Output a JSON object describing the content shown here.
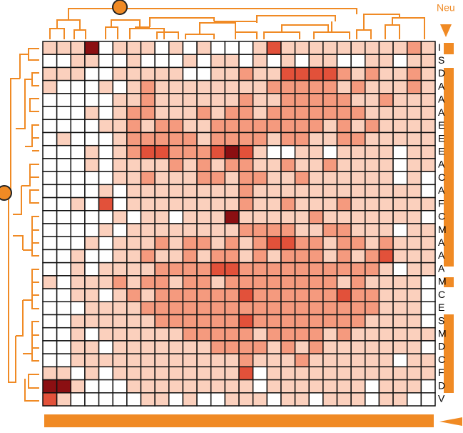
{
  "chart_data": {
    "type": "heatmap",
    "annotation": "Neu",
    "row_labels": [
      "I",
      "S",
      "D",
      "A",
      "A",
      "A",
      "E",
      "E",
      "E",
      "A",
      "C",
      "A",
      "F",
      "C",
      "M",
      "A",
      "A",
      "A",
      "M",
      "C",
      "E",
      "S",
      "M",
      "D",
      "C",
      "F",
      "D",
      "V"
    ],
    "zlim": [
      0,
      4
    ],
    "colors": [
      "#ffffff",
      "#fbd0bd",
      "#f59a7e",
      "#e2513a",
      "#8b0f12"
    ],
    "values": [
      [
        1,
        1,
        1,
        4,
        0,
        1,
        1,
        1,
        0,
        1,
        0,
        1,
        0,
        0,
        0,
        1,
        3,
        1,
        1,
        1,
        1,
        1,
        1,
        1,
        1,
        1,
        2,
        1
      ],
      [
        0,
        0,
        1,
        1,
        0,
        0,
        1,
        0,
        0,
        0,
        1,
        0,
        1,
        1,
        0,
        1,
        0,
        1,
        0,
        1,
        1,
        0,
        0,
        1,
        1,
        0,
        1,
        1
      ],
      [
        1,
        1,
        1,
        0,
        0,
        1,
        1,
        1,
        1,
        1,
        0,
        0,
        1,
        1,
        2,
        1,
        1,
        3,
        3,
        3,
        3,
        2,
        1,
        2,
        1,
        1,
        2,
        1
      ],
      [
        1,
        0,
        0,
        0,
        1,
        0,
        1,
        2,
        1,
        1,
        1,
        1,
        1,
        1,
        1,
        1,
        2,
        2,
        2,
        2,
        2,
        1,
        2,
        1,
        1,
        1,
        2,
        1
      ],
      [
        0,
        0,
        0,
        0,
        0,
        1,
        1,
        2,
        1,
        1,
        1,
        1,
        1,
        1,
        2,
        1,
        1,
        2,
        2,
        2,
        2,
        2,
        1,
        1,
        2,
        1,
        1,
        1
      ],
      [
        0,
        0,
        0,
        1,
        0,
        1,
        2,
        2,
        1,
        1,
        1,
        2,
        1,
        2,
        2,
        1,
        2,
        2,
        2,
        2,
        2,
        2,
        2,
        1,
        1,
        1,
        1,
        1
      ],
      [
        0,
        0,
        0,
        0,
        1,
        1,
        2,
        1,
        2,
        2,
        1,
        1,
        2,
        2,
        2,
        2,
        2,
        2,
        2,
        2,
        1,
        2,
        1,
        2,
        1,
        1,
        1,
        1
      ],
      [
        0,
        1,
        0,
        0,
        0,
        1,
        2,
        2,
        2,
        2,
        2,
        1,
        2,
        2,
        2,
        2,
        1,
        2,
        2,
        1,
        1,
        2,
        2,
        1,
        1,
        1,
        1,
        1
      ],
      [
        0,
        0,
        0,
        1,
        0,
        1,
        2,
        3,
        3,
        2,
        2,
        2,
        3,
        4,
        3,
        1,
        0,
        0,
        1,
        1,
        0,
        1,
        1,
        1,
        1,
        0,
        1,
        1
      ],
      [
        0,
        0,
        0,
        1,
        0,
        1,
        1,
        1,
        1,
        2,
        1,
        2,
        1,
        2,
        2,
        1,
        1,
        2,
        1,
        1,
        2,
        1,
        1,
        1,
        1,
        0,
        1,
        1
      ],
      [
        0,
        0,
        0,
        0,
        0,
        1,
        1,
        2,
        1,
        1,
        1,
        2,
        2,
        1,
        2,
        2,
        1,
        1,
        2,
        1,
        1,
        1,
        1,
        1,
        1,
        0,
        1,
        0
      ],
      [
        0,
        0,
        0,
        0,
        1,
        0,
        1,
        1,
        1,
        1,
        1,
        1,
        1,
        1,
        2,
        1,
        1,
        1,
        1,
        1,
        1,
        1,
        1,
        1,
        1,
        1,
        1,
        0
      ],
      [
        0,
        0,
        1,
        0,
        3,
        0,
        1,
        1,
        1,
        1,
        1,
        1,
        1,
        1,
        2,
        1,
        1,
        2,
        1,
        1,
        1,
        2,
        1,
        1,
        1,
        1,
        1,
        1
      ],
      [
        0,
        0,
        0,
        0,
        0,
        1,
        0,
        1,
        1,
        0,
        1,
        1,
        1,
        4,
        1,
        1,
        1,
        1,
        1,
        2,
        1,
        1,
        1,
        1,
        1,
        1,
        1,
        0
      ],
      [
        0,
        0,
        0,
        0,
        1,
        0,
        1,
        1,
        1,
        1,
        1,
        1,
        1,
        1,
        2,
        2,
        2,
        2,
        1,
        1,
        2,
        2,
        1,
        1,
        1,
        0,
        1,
        1
      ],
      [
        0,
        0,
        0,
        1,
        0,
        1,
        1,
        1,
        2,
        1,
        2,
        2,
        1,
        2,
        1,
        2,
        3,
        3,
        2,
        2,
        1,
        2,
        2,
        1,
        2,
        1,
        1,
        1
      ],
      [
        0,
        0,
        1,
        0,
        0,
        1,
        1,
        2,
        1,
        1,
        2,
        1,
        2,
        2,
        1,
        2,
        1,
        2,
        2,
        2,
        1,
        2,
        1,
        2,
        3,
        1,
        1,
        1
      ],
      [
        0,
        0,
        1,
        0,
        1,
        1,
        1,
        1,
        2,
        2,
        2,
        2,
        3,
        3,
        2,
        2,
        2,
        2,
        2,
        2,
        2,
        2,
        2,
        2,
        1,
        0,
        1,
        1
      ],
      [
        1,
        0,
        1,
        1,
        1,
        2,
        1,
        2,
        2,
        1,
        2,
        2,
        1,
        2,
        2,
        2,
        2,
        2,
        2,
        2,
        2,
        1,
        2,
        1,
        1,
        1,
        1,
        0
      ],
      [
        0,
        0,
        1,
        1,
        0,
        1,
        2,
        1,
        2,
        2,
        2,
        2,
        2,
        2,
        3,
        2,
        2,
        2,
        2,
        2,
        2,
        3,
        2,
        2,
        1,
        1,
        1,
        0
      ],
      [
        0,
        0,
        0,
        1,
        1,
        1,
        1,
        2,
        2,
        2,
        2,
        2,
        2,
        2,
        2,
        2,
        2,
        2,
        2,
        2,
        2,
        2,
        2,
        2,
        1,
        1,
        1,
        0
      ],
      [
        0,
        0,
        1,
        1,
        1,
        1,
        1,
        1,
        2,
        2,
        2,
        2,
        2,
        2,
        3,
        2,
        2,
        2,
        2,
        2,
        2,
        2,
        2,
        1,
        1,
        1,
        1,
        0
      ],
      [
        0,
        0,
        1,
        0,
        1,
        1,
        1,
        1,
        1,
        1,
        2,
        2,
        2,
        2,
        2,
        1,
        2,
        2,
        2,
        2,
        1,
        2,
        1,
        1,
        1,
        1,
        1,
        1
      ],
      [
        0,
        0,
        1,
        1,
        0,
        1,
        1,
        1,
        1,
        1,
        1,
        1,
        2,
        2,
        2,
        2,
        1,
        2,
        1,
        2,
        1,
        1,
        1,
        1,
        1,
        1,
        1,
        0
      ],
      [
        0,
        0,
        1,
        1,
        1,
        1,
        1,
        1,
        1,
        1,
        1,
        1,
        1,
        1,
        2,
        1,
        1,
        1,
        2,
        1,
        1,
        1,
        1,
        1,
        1,
        0,
        1,
        1
      ],
      [
        1,
        1,
        0,
        1,
        0,
        1,
        1,
        1,
        1,
        1,
        1,
        1,
        1,
        1,
        3,
        0,
        1,
        1,
        1,
        1,
        1,
        1,
        1,
        1,
        1,
        1,
        1,
        1
      ],
      [
        4,
        4,
        1,
        0,
        0,
        0,
        1,
        1,
        1,
        1,
        1,
        1,
        1,
        1,
        1,
        0,
        1,
        1,
        1,
        1,
        1,
        1,
        1,
        0,
        1,
        1,
        1,
        0
      ],
      [
        3,
        1,
        0,
        0,
        0,
        0,
        0,
        1,
        1,
        0,
        1,
        0,
        0,
        1,
        1,
        1,
        0,
        1,
        1,
        0,
        1,
        1,
        1,
        0,
        1,
        1,
        0,
        0
      ]
    ]
  }
}
